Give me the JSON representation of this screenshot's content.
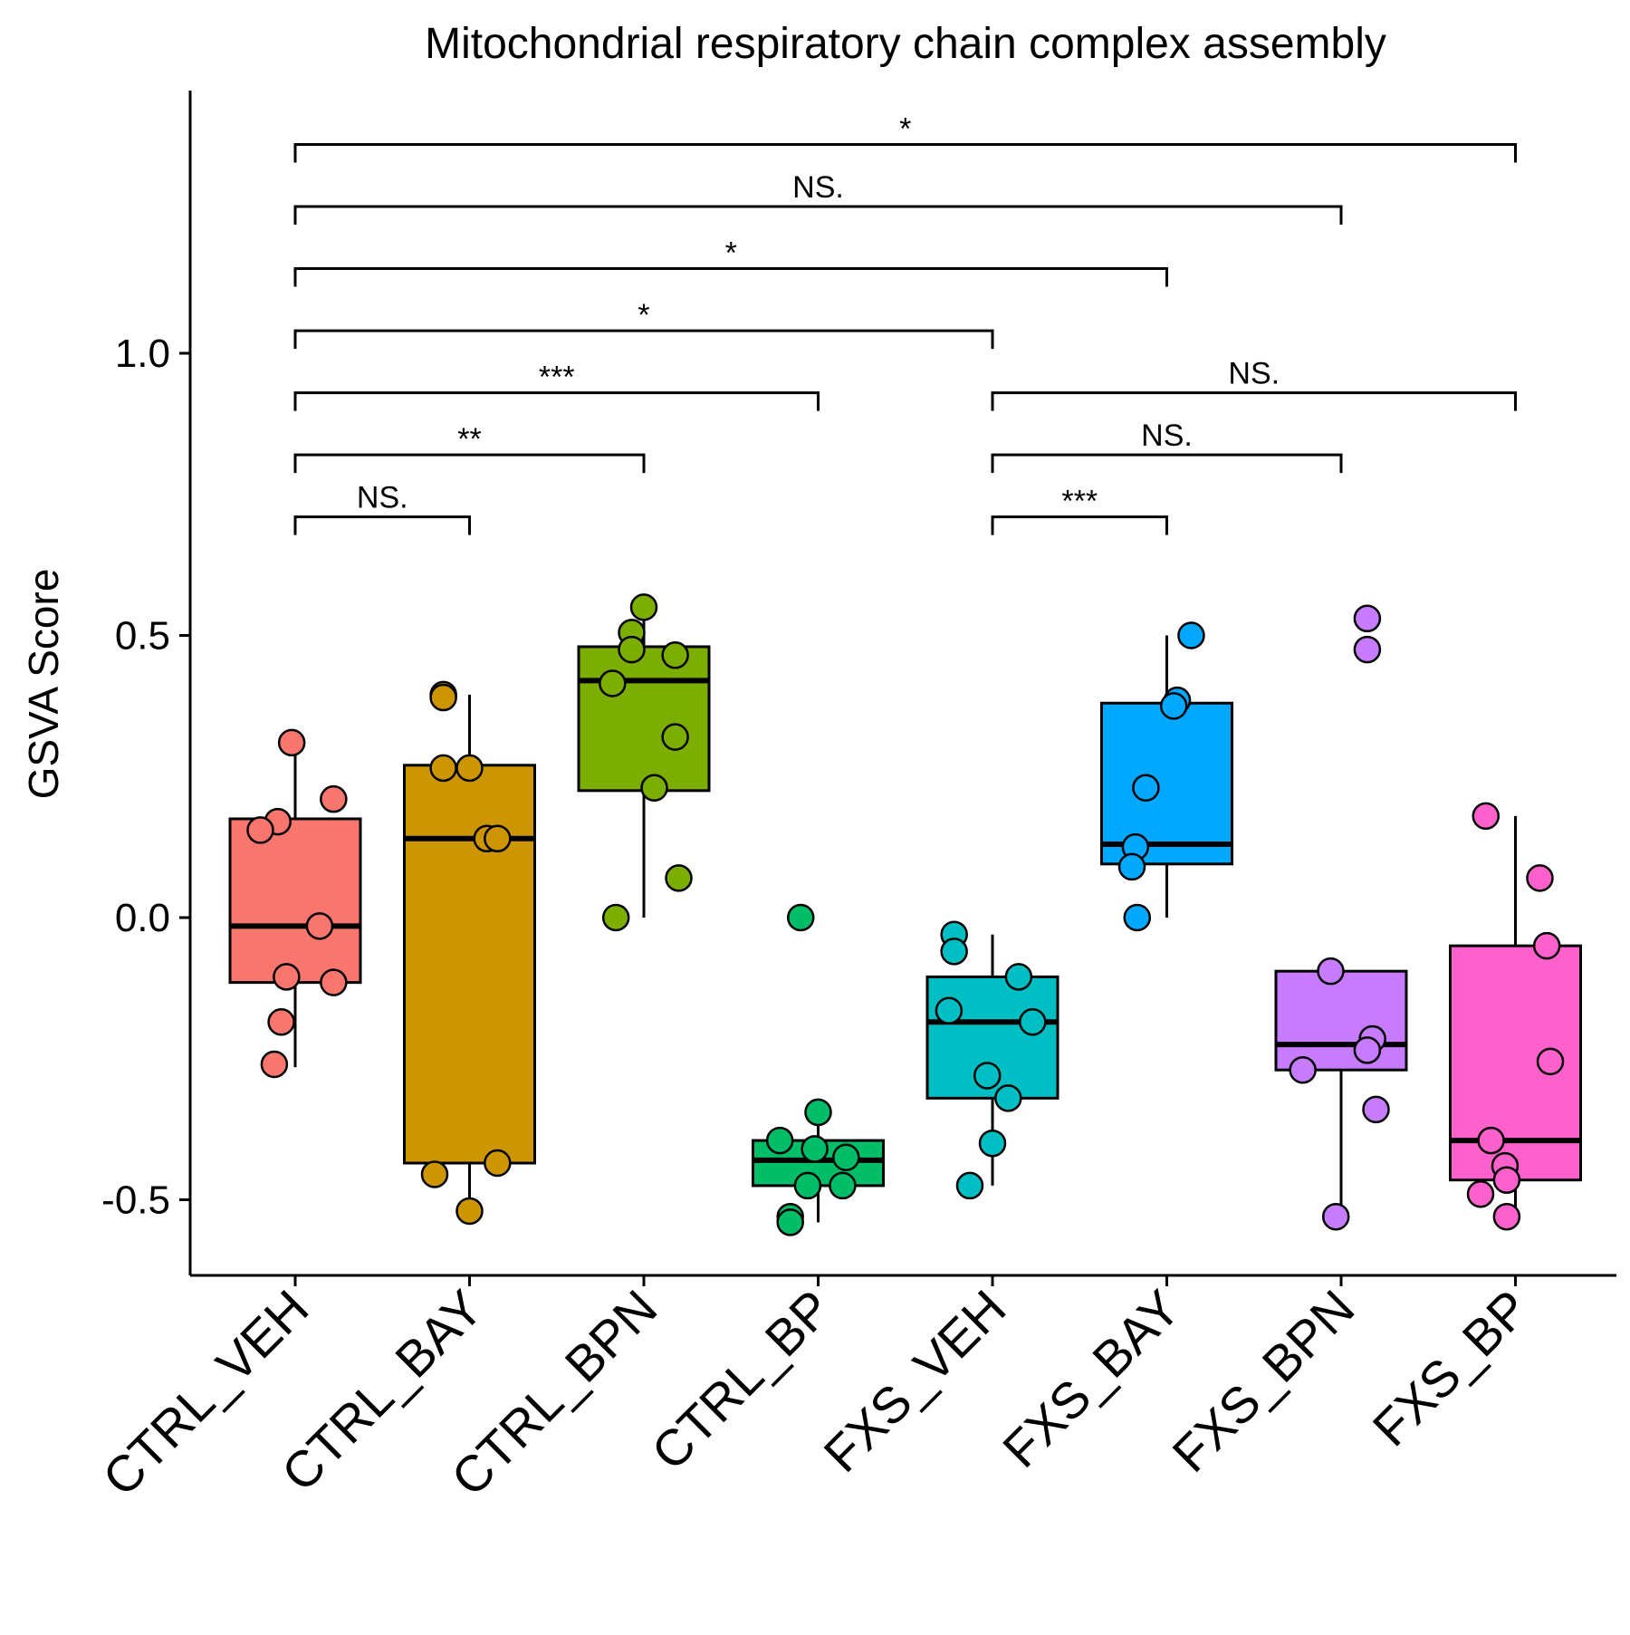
{
  "chart_data": {
    "type": "boxplot",
    "title": "Mitochondrial respiratory chain complex assembly",
    "xlabel": "",
    "ylabel": "GSVA Score",
    "ylim": [
      -0.63,
      1.46
    ],
    "yticks": [
      -0.5,
      0.0,
      0.5,
      1.0
    ],
    "ytick_labels": [
      "-0.5",
      "0.0",
      "0.5",
      "1.0"
    ],
    "grid": false,
    "legend": "none",
    "categories": [
      "CTRL_VEH",
      "CTRL_BAY",
      "CTRL_BPN",
      "CTRL_BP",
      "FXS_VEH",
      "FXS_BAY",
      "FXS_BPN",
      "FXS_BP"
    ],
    "colors": [
      "#F8766D",
      "#CD9600",
      "#7CAE00",
      "#00BE67",
      "#00BFC4",
      "#00A9FF",
      "#C77CFF",
      "#FF61CC"
    ],
    "boxes": [
      {
        "q1": -0.115,
        "median": -0.015,
        "q3": 0.175,
        "whisker_low": -0.265,
        "whisker_high": 0.315
      },
      {
        "q1": -0.435,
        "median": 0.14,
        "q3": 0.27,
        "whisker_low": -0.52,
        "whisker_high": 0.395
      },
      {
        "q1": 0.225,
        "median": 0.42,
        "q3": 0.48,
        "whisker_low": 0.0,
        "whisker_high": 0.55
      },
      {
        "q1": -0.475,
        "median": -0.43,
        "q3": -0.395,
        "whisker_low": -0.54,
        "whisker_high": -0.345
      },
      {
        "q1": -0.32,
        "median": -0.185,
        "q3": -0.105,
        "whisker_low": -0.475,
        "whisker_high": -0.03
      },
      {
        "q1": 0.095,
        "median": 0.13,
        "q3": 0.38,
        "whisker_low": 0.0,
        "whisker_high": 0.5
      },
      {
        "q1": -0.27,
        "median": -0.225,
        "q3": -0.095,
        "whisker_low": -0.53,
        "whisker_high": -0.095
      },
      {
        "q1": -0.465,
        "median": -0.395,
        "q3": -0.05,
        "whisker_low": -0.53,
        "whisker_high": 0.18
      }
    ],
    "points": [
      [
        [
          -0.02,
          0.31
        ],
        [
          0.22,
          0.21
        ],
        [
          -0.1,
          0.17
        ],
        [
          -0.2,
          0.155
        ],
        [
          0.14,
          -0.015
        ],
        [
          -0.05,
          -0.105
        ],
        [
          0.22,
          -0.115
        ],
        [
          -0.08,
          -0.185
        ],
        [
          -0.12,
          -0.26
        ]
      ],
      [
        [
          -0.15,
          0.395
        ],
        [
          -0.15,
          0.39
        ],
        [
          -0.15,
          0.265
        ],
        [
          0.0,
          0.265
        ],
        [
          0.1,
          0.14
        ],
        [
          0.16,
          0.14
        ],
        [
          0.16,
          -0.435
        ],
        [
          -0.2,
          -0.455
        ],
        [
          0.0,
          -0.52
        ]
      ],
      [
        [
          0.0,
          0.55
        ],
        [
          -0.07,
          0.505
        ],
        [
          -0.07,
          0.475
        ],
        [
          0.18,
          0.465
        ],
        [
          -0.18,
          0.415
        ],
        [
          0.18,
          0.32
        ],
        [
          0.06,
          0.23
        ],
        [
          0.2,
          0.07
        ],
        [
          -0.16,
          0.0
        ]
      ],
      [
        [
          -0.1,
          0.0
        ],
        [
          0.0,
          -0.345
        ],
        [
          -0.22,
          -0.395
        ],
        [
          -0.02,
          -0.41
        ],
        [
          0.16,
          -0.425
        ],
        [
          -0.06,
          -0.475
        ],
        [
          0.14,
          -0.475
        ],
        [
          -0.16,
          -0.53
        ],
        [
          -0.16,
          -0.54
        ]
      ],
      [
        [
          -0.22,
          -0.03
        ],
        [
          -0.22,
          -0.06
        ],
        [
          0.15,
          -0.105
        ],
        [
          -0.25,
          -0.165
        ],
        [
          0.23,
          -0.185
        ],
        [
          -0.03,
          -0.28
        ],
        [
          0.09,
          -0.32
        ],
        [
          0.0,
          -0.4
        ],
        [
          -0.13,
          -0.475
        ]
      ],
      [
        [
          0.14,
          0.5
        ],
        [
          0.06,
          0.385
        ],
        [
          0.04,
          0.375
        ],
        [
          -0.12,
          0.23
        ],
        [
          -0.18,
          0.125
        ],
        [
          -0.2,
          0.09
        ],
        [
          -0.17,
          0.0
        ]
      ],
      [
        [
          0.15,
          0.53
        ],
        [
          0.15,
          0.475
        ],
        [
          -0.06,
          -0.095
        ],
        [
          0.18,
          -0.215
        ],
        [
          0.15,
          -0.235
        ],
        [
          -0.22,
          -0.27
        ],
        [
          0.2,
          -0.34
        ],
        [
          -0.03,
          -0.53
        ]
      ],
      [
        [
          -0.17,
          0.18
        ],
        [
          0.14,
          0.07
        ],
        [
          0.18,
          -0.05
        ],
        [
          0.2,
          -0.255
        ],
        [
          -0.14,
          -0.395
        ],
        [
          -0.06,
          -0.44
        ],
        [
          -0.05,
          -0.465
        ],
        [
          -0.2,
          -0.49
        ],
        [
          -0.05,
          -0.53
        ]
      ]
    ],
    "comparisons": [
      {
        "from": 0,
        "to": 7,
        "y": 1.37,
        "label": "*"
      },
      {
        "from": 0,
        "to": 6,
        "y": 1.26,
        "label": "NS."
      },
      {
        "from": 0,
        "to": 5,
        "y": 1.15,
        "label": "*"
      },
      {
        "from": 0,
        "to": 4,
        "y": 1.04,
        "label": "*"
      },
      {
        "from": 0,
        "to": 3,
        "y": 0.93,
        "label": "***"
      },
      {
        "from": 4,
        "to": 7,
        "y": 0.93,
        "label": "NS."
      },
      {
        "from": 0,
        "to": 2,
        "y": 0.82,
        "label": "**"
      },
      {
        "from": 4,
        "to": 6,
        "y": 0.82,
        "label": "NS."
      },
      {
        "from": 0,
        "to": 1,
        "y": 0.71,
        "label": "NS."
      },
      {
        "from": 4,
        "to": 5,
        "y": 0.71,
        "label": "***"
      }
    ]
  }
}
